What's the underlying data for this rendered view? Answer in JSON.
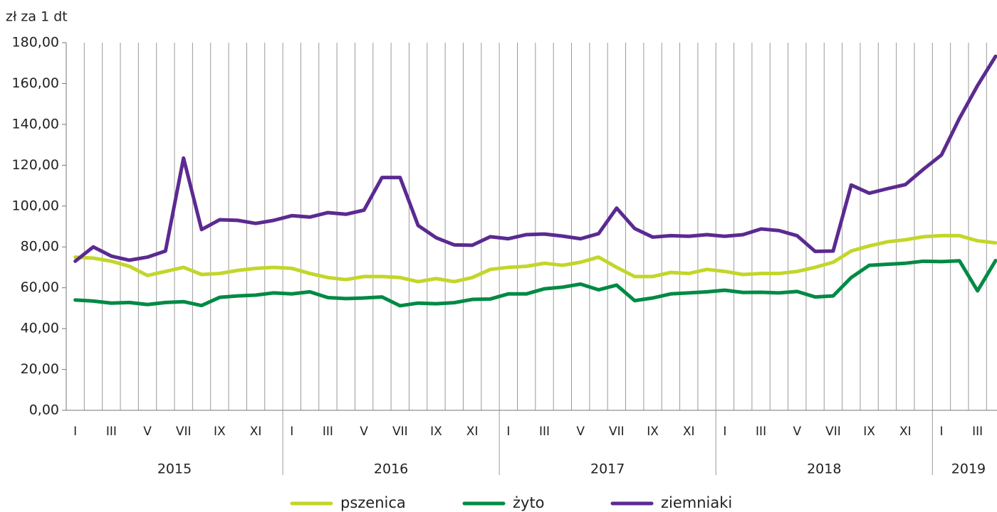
{
  "chart_data": {
    "type": "line",
    "y_unit_label": "zł za 1 dt",
    "categories": [
      "I",
      null,
      "III",
      null,
      "V",
      null,
      "VII",
      null,
      "IX",
      null,
      "XI",
      null,
      "I",
      null,
      "III",
      null,
      "V",
      null,
      "VII",
      null,
      "IX",
      null,
      "XI",
      null,
      "I",
      null,
      "III",
      null,
      "V",
      null,
      "VII",
      null,
      "IX",
      null,
      "XI",
      null,
      "I",
      null,
      "III",
      null,
      "V",
      null,
      "VII",
      null,
      "IX",
      null,
      "XI",
      null,
      "I",
      null,
      "III",
      null
    ],
    "years": [
      "2015",
      "2016",
      "2017",
      "2018",
      "2019"
    ],
    "series": [
      {
        "name": "pszenica",
        "color": "#c3d62a",
        "values": [
          75,
          74.5,
          73,
          70.5,
          66,
          68,
          70,
          66.5,
          67,
          68.5,
          69.5,
          70,
          69.5,
          67,
          65,
          64,
          65.5,
          65.5,
          65,
          63,
          64.5,
          63,
          65,
          69,
          70,
          70.5,
          72,
          71,
          72.5,
          75,
          70,
          65.5,
          65.5,
          67.5,
          67,
          69,
          68,
          66.5,
          67,
          67,
          68,
          70,
          72.5,
          78,
          80.5,
          82.5,
          83.5,
          85,
          85.5,
          85.5,
          83,
          82
        ]
      },
      {
        "name": "żyto",
        "color": "#008a45",
        "values": [
          54,
          53.5,
          52.5,
          52.8,
          51.8,
          52.8,
          53.2,
          51.3,
          55.3,
          56,
          56.4,
          57.5,
          57,
          58,
          55.2,
          54.7,
          55,
          55.5,
          51.2,
          52.5,
          52.2,
          52.7,
          54.3,
          54.5,
          57,
          57,
          59.5,
          60.3,
          61.8,
          59,
          61.3,
          53.7,
          55,
          57,
          57.5,
          58,
          58.8,
          57.7,
          57.8,
          57.5,
          58.2,
          55.5,
          56,
          65,
          71,
          71.5,
          72,
          73,
          72.8,
          73.2,
          58.5,
          73.3
        ]
      },
      {
        "name": "ziemniaki",
        "color": "#5b2a91",
        "values": [
          73,
          80,
          75.5,
          73.5,
          75,
          78,
          123.5,
          88.5,
          93.3,
          93,
          91.5,
          93,
          95.3,
          94.6,
          96.8,
          96,
          98,
          114,
          114,
          90.5,
          84.5,
          81,
          80.8,
          85,
          84,
          86,
          86.3,
          85.3,
          84,
          86.5,
          99,
          89,
          84.8,
          85.5,
          85.2,
          86,
          85.2,
          86,
          88.8,
          88,
          85.5,
          77.8,
          78,
          110.3,
          106.3,
          108.5,
          110.5,
          118,
          125,
          143,
          159,
          173.3
        ]
      }
    ],
    "ylim": [
      0,
      180
    ],
    "yticks": [
      {
        "value": 0,
        "label": "0,00"
      },
      {
        "value": 20,
        "label": "20,00"
      },
      {
        "value": 40,
        "label": "40,00"
      },
      {
        "value": 60,
        "label": "60,00"
      },
      {
        "value": 80,
        "label": "80,00"
      },
      {
        "value": 100,
        "label": "100,00"
      },
      {
        "value": 120,
        "label": "120,00"
      },
      {
        "value": 140,
        "label": "140,00"
      },
      {
        "value": 160,
        "label": "160,00"
      },
      {
        "value": 180,
        "label": "180,00"
      }
    ],
    "grid": true,
    "legend": "bottom"
  }
}
